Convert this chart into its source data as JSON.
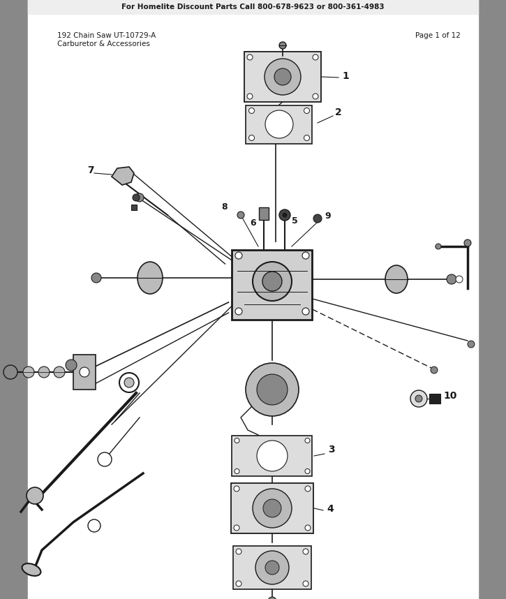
{
  "header_text": "For Homelite Discount Parts Call 800-678-9623 or 800-361-4983",
  "title_left1": "192 Chain Saw UT-10729-A",
  "title_left2": "Carburetor & Accessories",
  "title_right": "Page 1 of 12",
  "bg_color": "#c8c8c8",
  "page_bg": "#ffffff",
  "sidebar_color": "#888888",
  "header_bg": "#e8e8e8",
  "black": "#1a1a1a",
  "gray_dark": "#444444",
  "gray_mid": "#888888",
  "gray_light": "#bbbbbb",
  "gray_lighter": "#dddddd"
}
